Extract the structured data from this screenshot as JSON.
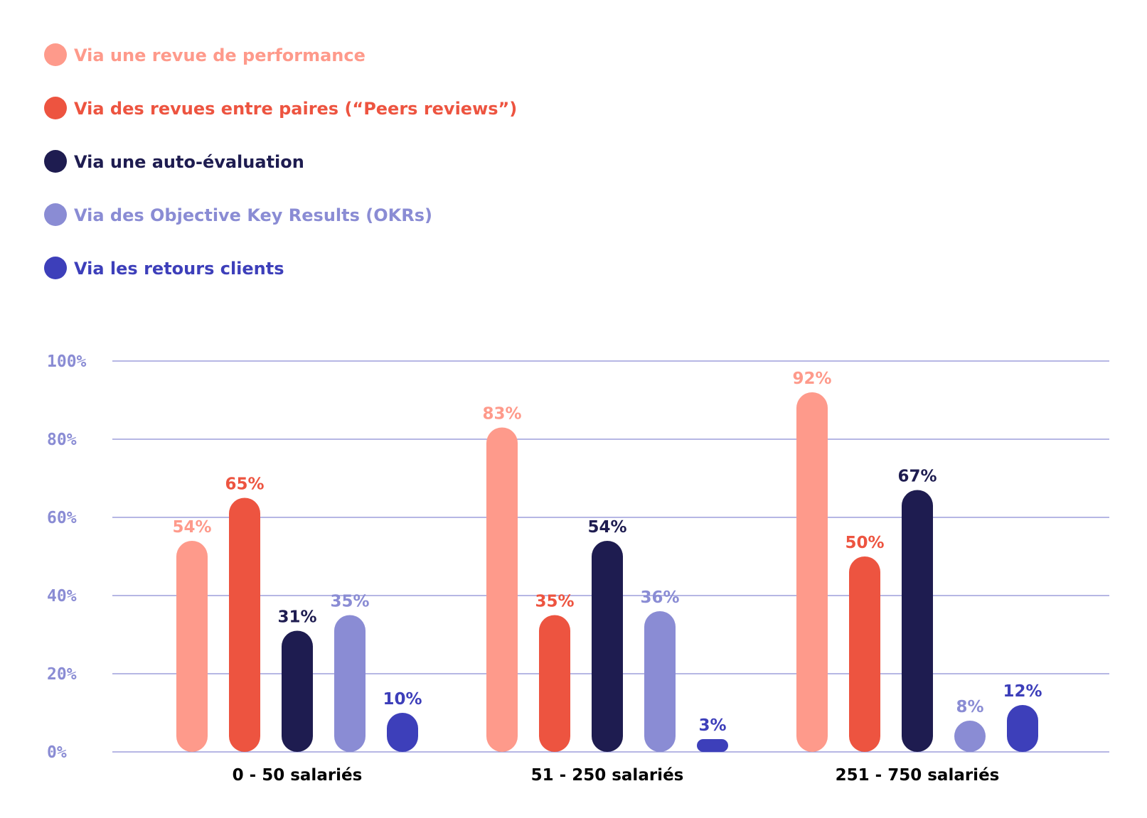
{
  "chart_data": {
    "type": "bar",
    "categories": [
      "0 - 50 salariés",
      "51 - 250 salariés",
      "251 - 750 salariés"
    ],
    "series": [
      {
        "name": "Via une revue de performance",
        "color": "#fe9a8b",
        "values": [
          54,
          83,
          92
        ],
        "labels": [
          "54%",
          "83%",
          "92%"
        ]
      },
      {
        "name": "Via des revues entre paires (“Peers reviews”)",
        "color": "#ed5440",
        "values": [
          65,
          35,
          50
        ],
        "labels": [
          "65%",
          "35%",
          "50%"
        ]
      },
      {
        "name": "Via une auto-évaluation",
        "color": "#1e1c50",
        "values": [
          31,
          54,
          67
        ],
        "labels": [
          "31%",
          "54%",
          "67%"
        ]
      },
      {
        "name": "Via des Objective Key Results (OKRs)",
        "color": "#8a8cd4",
        "values": [
          35,
          36,
          8
        ],
        "labels": [
          "35%",
          "36%",
          "8%"
        ]
      },
      {
        "name": "Via les retours clients",
        "color": "#3d3fba",
        "values": [
          10,
          3,
          12
        ],
        "labels": [
          "10%",
          "3%",
          "12%"
        ]
      }
    ],
    "yticks": [
      "0%",
      "20%",
      "40%",
      "60%",
      "80%",
      "100%"
    ],
    "ylim": [
      0,
      100
    ],
    "grid": true,
    "grid_color": "#8a8cd4",
    "legend_position": "top-left"
  }
}
